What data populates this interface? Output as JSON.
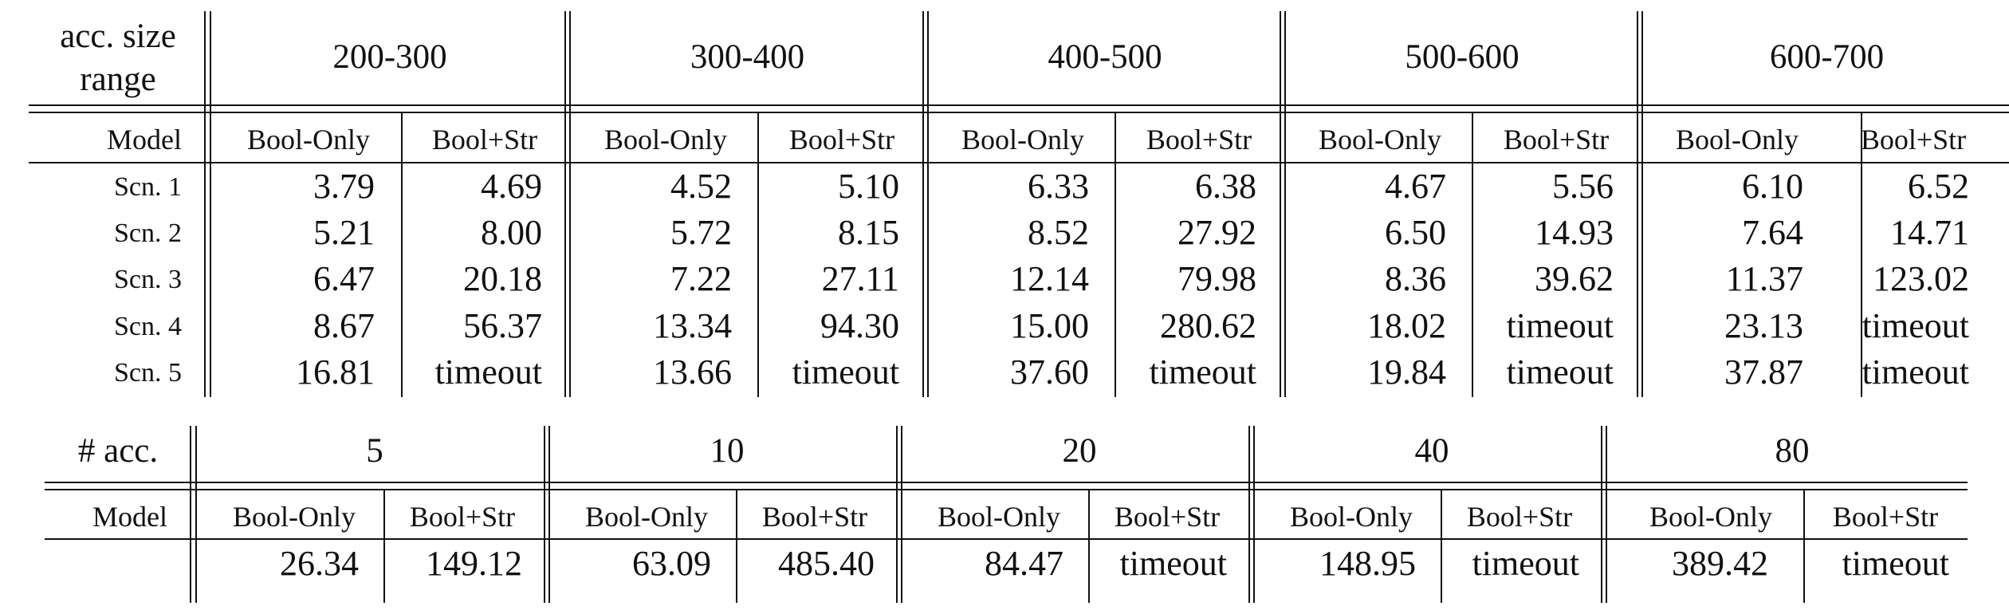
{
  "table1": {
    "corner": [
      "acc. size",
      "range"
    ],
    "groups": [
      "200-300",
      "300-400",
      "400-500",
      "500-600",
      "600-700"
    ],
    "model_label": "Model",
    "sub_headers": [
      "Bool-Only",
      "Bool+Str"
    ],
    "rows": [
      {
        "label": "Scn. 1",
        "values": [
          "3.79",
          "4.69",
          "4.52",
          "5.10",
          "6.33",
          "6.38",
          "4.67",
          "5.56",
          "6.10",
          "6.52"
        ]
      },
      {
        "label": "Scn. 2",
        "values": [
          "5.21",
          "8.00",
          "5.72",
          "8.15",
          "8.52",
          "27.92",
          "6.50",
          "14.93",
          "7.64",
          "14.71"
        ]
      },
      {
        "label": "Scn. 3",
        "values": [
          "6.47",
          "20.18",
          "7.22",
          "27.11",
          "12.14",
          "79.98",
          "8.36",
          "39.62",
          "11.37",
          "123.02"
        ]
      },
      {
        "label": "Scn. 4",
        "values": [
          "8.67",
          "56.37",
          "13.34",
          "94.30",
          "15.00",
          "280.62",
          "18.02",
          "timeout",
          "23.13",
          "timeout"
        ]
      },
      {
        "label": "Scn. 5",
        "values": [
          "16.81",
          "timeout",
          "13.66",
          "timeout",
          "37.60",
          "timeout",
          "19.84",
          "timeout",
          "37.87",
          "timeout"
        ]
      }
    ]
  },
  "table2": {
    "corner": "# acc.",
    "groups": [
      "5",
      "10",
      "20",
      "40",
      "80"
    ],
    "model_label": "Model",
    "sub_headers": [
      "Bool-Only",
      "Bool+Str"
    ],
    "rows": [
      {
        "label": "",
        "values": [
          "26.34",
          "149.12",
          "63.09",
          "485.40",
          "84.47",
          "timeout",
          "148.95",
          "timeout",
          "389.42",
          "timeout"
        ]
      }
    ]
  }
}
